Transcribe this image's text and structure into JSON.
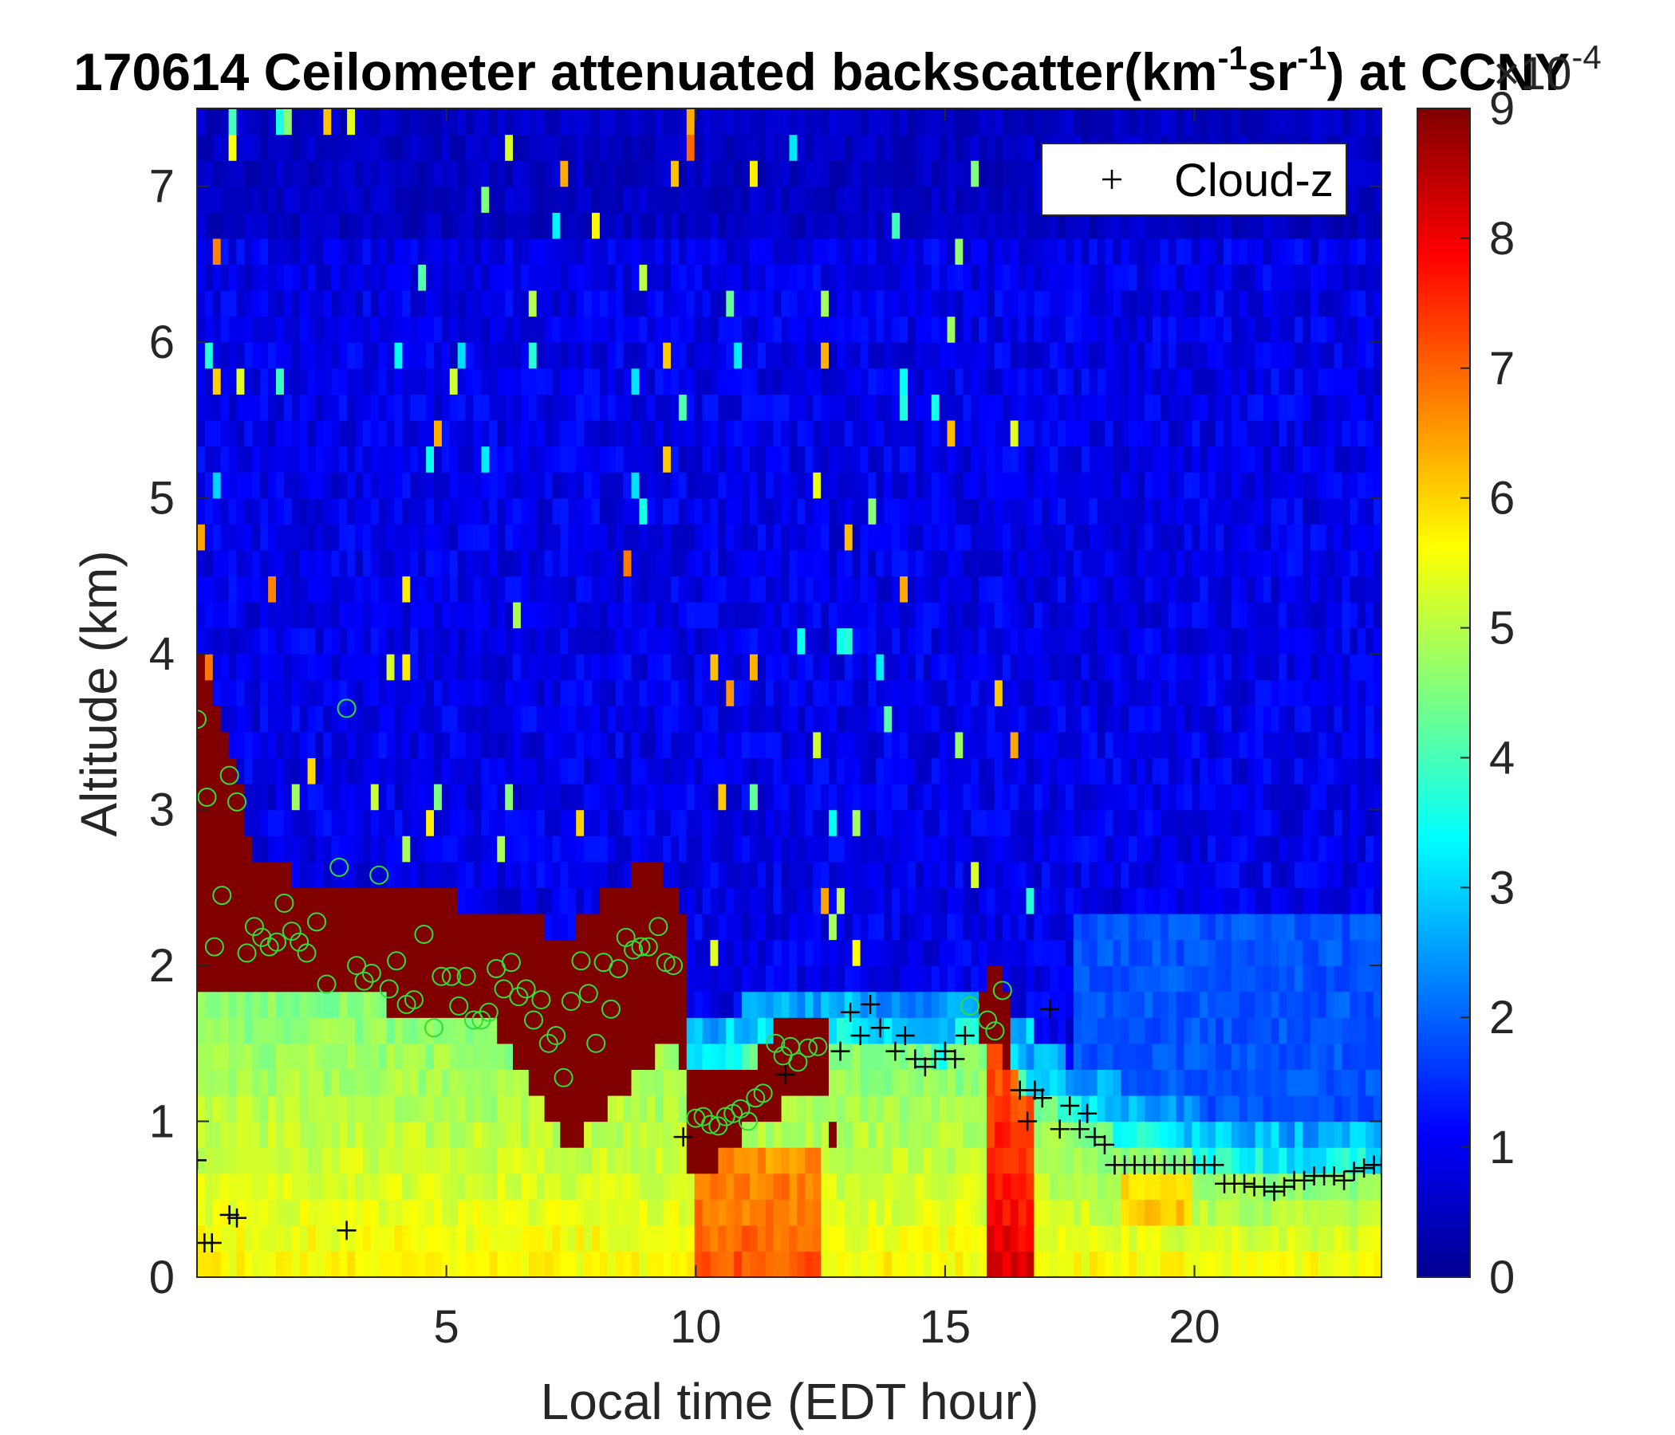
{
  "chart_data": {
    "type": "heatmap",
    "title": "170614 Ceilometer attenuated backscatter(km",
    "title_sup1": "-1",
    "title_mid": "sr",
    "title_sup2": "-1",
    "title_end": ") at CCNY",
    "xlabel": "Local time (EDT hour)",
    "ylabel": "Altitude (km)",
    "xlim": [
      0,
      23.75
    ],
    "ylim": [
      0,
      7.5
    ],
    "xticks": [
      5,
      10,
      15,
      20
    ],
    "yticks": [
      0,
      1,
      2,
      3,
      4,
      5,
      6,
      7
    ],
    "colormap": "jet",
    "clim": [
      0,
      9
    ],
    "colorbar_ticks": [
      0,
      1,
      2,
      3,
      4,
      5,
      6,
      7,
      8,
      9
    ],
    "colorbar_exponent_base": "×10",
    "colorbar_exponent": "-4",
    "legend": {
      "location": "top-right",
      "entries": [
        {
          "marker": "+",
          "color": "#000000",
          "label": "Cloud-z"
        }
      ]
    },
    "colors": {
      "cloud_marker": "#000000",
      "circle_marker": "#33dd33"
    },
    "cloud_z": [
      [
        0.0,
        0.75
      ],
      [
        0.15,
        0.22
      ],
      [
        0.3,
        0.22
      ],
      [
        0.65,
        0.4
      ],
      [
        0.8,
        0.38
      ],
      [
        3.0,
        0.3
      ],
      [
        9.75,
        0.9
      ],
      [
        11.8,
        1.3
      ],
      [
        12.9,
        1.45
      ],
      [
        13.1,
        1.7
      ],
      [
        13.3,
        1.55
      ],
      [
        13.5,
        1.75
      ],
      [
        13.7,
        1.6
      ],
      [
        14.0,
        1.45
      ],
      [
        14.2,
        1.55
      ],
      [
        14.4,
        1.4
      ],
      [
        14.6,
        1.35
      ],
      [
        14.8,
        1.4
      ],
      [
        15.0,
        1.45
      ],
      [
        15.2,
        1.4
      ],
      [
        15.4,
        1.55
      ],
      [
        16.5,
        1.2
      ],
      [
        16.65,
        1.0
      ],
      [
        16.8,
        1.2
      ],
      [
        16.95,
        1.15
      ],
      [
        17.1,
        1.72
      ],
      [
        17.3,
        0.95
      ],
      [
        17.5,
        1.1
      ],
      [
        17.7,
        0.95
      ],
      [
        17.85,
        1.05
      ],
      [
        18.0,
        0.9
      ],
      [
        18.2,
        0.85
      ],
      [
        18.4,
        0.72
      ],
      [
        18.6,
        0.72
      ],
      [
        18.8,
        0.72
      ],
      [
        19.0,
        0.72
      ],
      [
        19.2,
        0.72
      ],
      [
        19.4,
        0.72
      ],
      [
        19.6,
        0.72
      ],
      [
        19.8,
        0.72
      ],
      [
        20.0,
        0.72
      ],
      [
        20.2,
        0.72
      ],
      [
        20.4,
        0.72
      ],
      [
        20.6,
        0.6
      ],
      [
        20.8,
        0.6
      ],
      [
        21.0,
        0.6
      ],
      [
        21.2,
        0.58
      ],
      [
        21.4,
        0.58
      ],
      [
        21.6,
        0.55
      ],
      [
        21.8,
        0.58
      ],
      [
        22.0,
        0.62
      ],
      [
        22.2,
        0.62
      ],
      [
        22.4,
        0.65
      ],
      [
        22.6,
        0.65
      ],
      [
        22.8,
        0.65
      ],
      [
        23.0,
        0.62
      ],
      [
        23.2,
        0.68
      ],
      [
        23.4,
        0.7
      ],
      [
        23.6,
        0.72
      ],
      [
        23.75,
        0.72
      ]
    ],
    "circles": [
      [
        0.0,
        3.58
      ],
      [
        0.2,
        3.08
      ],
      [
        0.35,
        2.12
      ],
      [
        0.5,
        2.45
      ],
      [
        0.65,
        3.22
      ],
      [
        0.8,
        3.05
      ],
      [
        1.0,
        2.08
      ],
      [
        1.15,
        2.25
      ],
      [
        1.3,
        2.18
      ],
      [
        1.45,
        2.12
      ],
      [
        1.6,
        2.15
      ],
      [
        1.75,
        2.4
      ],
      [
        1.9,
        2.22
      ],
      [
        2.05,
        2.15
      ],
      [
        2.2,
        2.08
      ],
      [
        2.4,
        2.28
      ],
      [
        2.6,
        1.88
      ],
      [
        2.85,
        2.63
      ],
      [
        3.0,
        3.65
      ],
      [
        3.2,
        2.0
      ],
      [
        3.35,
        1.9
      ],
      [
        3.5,
        1.95
      ],
      [
        3.65,
        2.58
      ],
      [
        3.85,
        1.85
      ],
      [
        4.0,
        2.03
      ],
      [
        4.2,
        1.75
      ],
      [
        4.35,
        1.78
      ],
      [
        4.55,
        2.2
      ],
      [
        4.75,
        1.6
      ],
      [
        4.9,
        1.93
      ],
      [
        5.1,
        1.93
      ],
      [
        5.25,
        1.74
      ],
      [
        5.4,
        1.93
      ],
      [
        5.55,
        1.65
      ],
      [
        5.7,
        1.65
      ],
      [
        5.85,
        1.7
      ],
      [
        6.0,
        1.98
      ],
      [
        6.15,
        1.85
      ],
      [
        6.3,
        2.02
      ],
      [
        6.45,
        1.8
      ],
      [
        6.6,
        1.85
      ],
      [
        6.75,
        1.65
      ],
      [
        6.9,
        1.78
      ],
      [
        7.05,
        1.5
      ],
      [
        7.2,
        1.55
      ],
      [
        7.35,
        1.28
      ],
      [
        7.5,
        1.77
      ],
      [
        7.7,
        2.03
      ],
      [
        7.85,
        1.82
      ],
      [
        8.0,
        1.5
      ],
      [
        8.15,
        2.02
      ],
      [
        8.3,
        1.72
      ],
      [
        8.45,
        1.98
      ],
      [
        8.6,
        2.18
      ],
      [
        8.75,
        2.1
      ],
      [
        8.9,
        2.12
      ],
      [
        9.05,
        2.12
      ],
      [
        9.25,
        2.25
      ],
      [
        9.4,
        2.02
      ],
      [
        9.55,
        2.0
      ],
      [
        10.0,
        1.02
      ],
      [
        10.15,
        1.03
      ],
      [
        10.3,
        0.98
      ],
      [
        10.45,
        0.97
      ],
      [
        10.6,
        1.03
      ],
      [
        10.75,
        1.05
      ],
      [
        10.9,
        1.08
      ],
      [
        11.05,
        1.0
      ],
      [
        11.2,
        1.15
      ],
      [
        11.35,
        1.18
      ],
      [
        11.6,
        1.5
      ],
      [
        11.75,
        1.42
      ],
      [
        11.9,
        1.48
      ],
      [
        12.05,
        1.38
      ],
      [
        12.25,
        1.47
      ],
      [
        12.45,
        1.48
      ],
      [
        15.5,
        1.74
      ],
      [
        15.85,
        1.65
      ],
      [
        16.0,
        1.58
      ],
      [
        16.15,
        1.84
      ]
    ]
  }
}
